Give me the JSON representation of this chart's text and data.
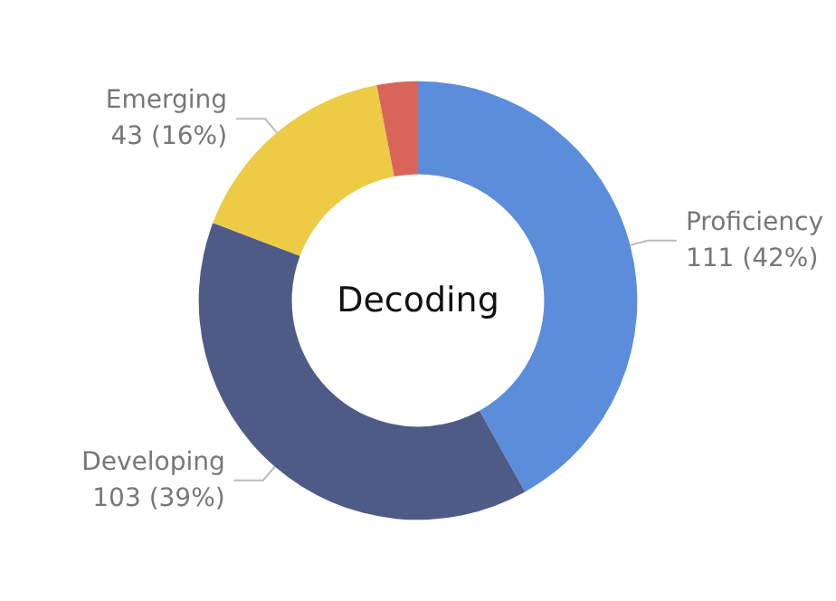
{
  "chart_data": {
    "type": "donut",
    "title": "Decoding",
    "categories": [
      "Proficiency",
      "Developing",
      "Emerging",
      null
    ],
    "values": [
      111,
      103,
      43,
      8
    ],
    "colors": [
      "#5b8ddb",
      "#4f5b87",
      "#edcb45",
      "#d9655a"
    ],
    "value_labels": [
      "111 (42%)",
      "103 (39%)",
      "43 (16%)",
      null
    ],
    "legend": false
  }
}
